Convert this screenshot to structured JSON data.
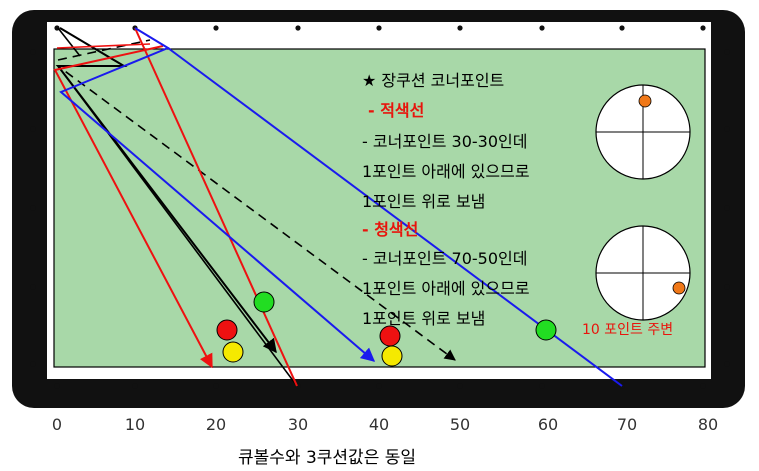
{
  "notes": {
    "title": "★ 장쿠션 코너포인트",
    "red_heading": "- 적색선",
    "red_line1": "- 코너포인트 30-30인데",
    "red_line2": "1포인트 아래에 있으므로",
    "red_line3": "1포인트 위로 보냄",
    "blue_heading": "- 청색선",
    "blue_line1": "- 코너포인트 70-50인데",
    "blue_line2": "1포인트 아래에 있으므로",
    "blue_line3": "1포인트 위로 보냄"
  },
  "spin_note": "10 포인트 주변",
  "axis_ticks": [
    "0",
    "10",
    "20",
    "30",
    "40",
    "50",
    "60",
    "70",
    "80"
  ],
  "caption": "큐볼수와 3쿠션값은 동일",
  "colors": {
    "cloth": "#a8d8a8",
    "rail": "#111111",
    "red_path": "#ee1111",
    "blue_path": "#1a1aee",
    "black_path": "#000000",
    "annotation_red": "#e8140c",
    "spin_dot": "#f07818"
  }
}
